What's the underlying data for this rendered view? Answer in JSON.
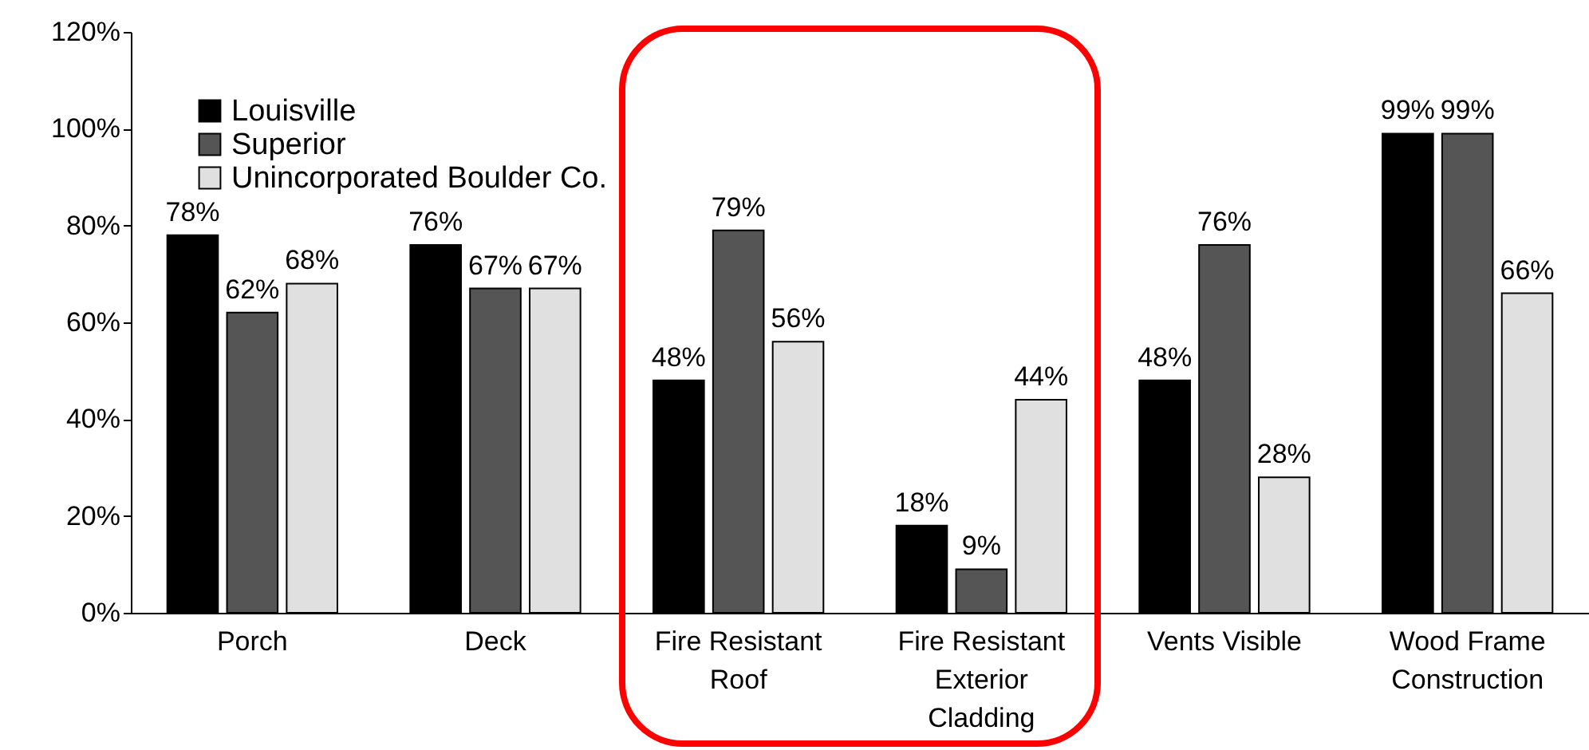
{
  "chart_data": {
    "type": "bar",
    "categories": [
      "Porch",
      "Deck",
      "Fire Resistant Roof",
      "Fire Resistant Exterior Cladding",
      "Vents Visible",
      "Wood Frame Construction"
    ],
    "series": [
      {
        "name": "Louisville",
        "color": "#000000",
        "values": [
          78,
          76,
          48,
          18,
          48,
          99
        ],
        "value_labels": [
          "78%",
          "76%",
          "48%",
          "18%",
          "48%",
          "99%"
        ]
      },
      {
        "name": "Superior",
        "color": "#555555",
        "values": [
          62,
          67,
          79,
          9,
          76,
          99
        ],
        "value_labels": [
          "62%",
          "67%",
          "79%",
          "9%",
          "76%",
          "99%"
        ]
      },
      {
        "name": "Unincorporated Boulder Co.",
        "color": "#e0e0e0",
        "values": [
          68,
          67,
          56,
          44,
          28,
          66
        ],
        "value_labels": [
          "68%",
          "67%",
          "56%",
          "44%",
          "28%",
          "66%"
        ]
      }
    ],
    "ylim": [
      0,
      120
    ],
    "yticks": [
      {
        "value": 0,
        "label": "0%"
      },
      {
        "value": 20,
        "label": "20%"
      },
      {
        "value": 40,
        "label": "40%"
      },
      {
        "value": 60,
        "label": "60%"
      },
      {
        "value": 80,
        "label": "80%"
      },
      {
        "value": 100,
        "label": "100%"
      },
      {
        "value": 120,
        "label": "120%"
      }
    ],
    "grid": false,
    "legend": "top left"
  }
}
